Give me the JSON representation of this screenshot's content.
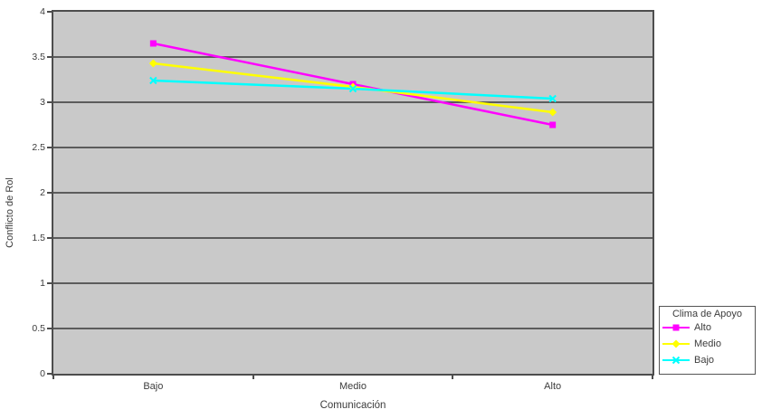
{
  "chart_data": {
    "type": "line",
    "title": "",
    "xlabel": "Comunicación",
    "ylabel": "Conflicto de Rol",
    "categories": [
      "Bajo",
      "Medio",
      "Alto"
    ],
    "series": [
      {
        "name": "Alto",
        "color": "#ff00ff",
        "marker": "square",
        "values": [
          3.65,
          3.2,
          2.75
        ]
      },
      {
        "name": "Medio",
        "color": "#ffff00",
        "marker": "diamond",
        "values": [
          3.43,
          3.17,
          2.89
        ]
      },
      {
        "name": "Bajo",
        "color": "#00ffff",
        "marker": "x",
        "values": [
          3.24,
          3.15,
          3.04
        ]
      }
    ],
    "ylim": [
      0,
      4
    ],
    "yticks": [
      0,
      0.5,
      1,
      1.5,
      2,
      2.5,
      3,
      3.5,
      4
    ],
    "ytick_labels": [
      "0",
      "0.5",
      "1",
      "1.5",
      "2",
      "2.5",
      "3",
      "3.5",
      "4"
    ],
    "grid": true,
    "legend": {
      "title": "Clima de Apoyo",
      "position": "bottom-right"
    },
    "plot_bg": "#c9c9c9",
    "grid_color": "#4d4d4d",
    "line_width": 2.5
  }
}
